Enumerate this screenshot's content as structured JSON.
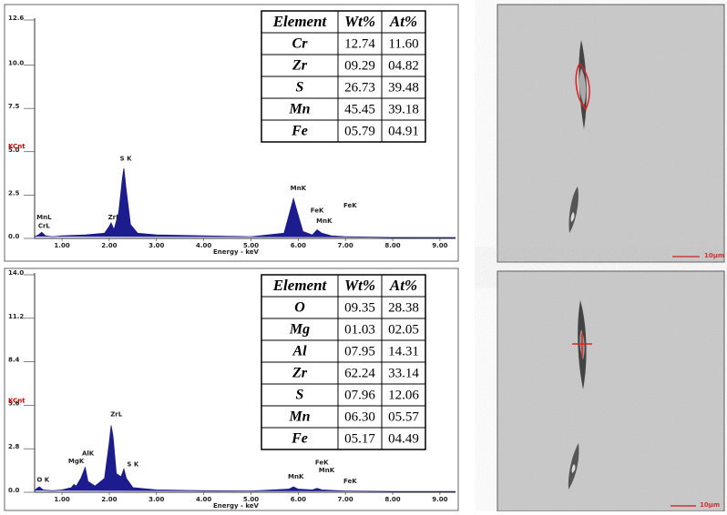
{
  "chart_data": [
    {
      "type": "area",
      "x_label": "Energy - keV",
      "y_label": "KCnt",
      "color": "#1c1c8e",
      "x": [
        0.42,
        0.5,
        0.57,
        0.65,
        0.8,
        1.0,
        1.5,
        1.9,
        2.0,
        2.04,
        2.1,
        2.2,
        2.28,
        2.31,
        2.35,
        2.45,
        2.6,
        3.0,
        4.0,
        5.0,
        5.7,
        5.85,
        5.9,
        5.95,
        6.1,
        6.3,
        6.4,
        6.5,
        6.7,
        7.0,
        8.0,
        9.0,
        9.33
      ],
      "values": [
        0.1,
        0.2,
        0.35,
        0.15,
        0.1,
        0.15,
        0.2,
        0.3,
        0.7,
        0.9,
        0.5,
        1.5,
        3.5,
        4.05,
        3.0,
        0.8,
        0.3,
        0.2,
        0.15,
        0.1,
        0.3,
        1.8,
        2.3,
        1.8,
        0.4,
        0.2,
        0.5,
        0.3,
        0.15,
        0.1,
        0.05,
        0.05,
        0.05
      ],
      "xlim": [
        0.42,
        9.33
      ],
      "ylim": [
        0,
        12.6
      ],
      "xticks": [
        {
          "value": 1,
          "label": "1.00"
        },
        {
          "value": 2,
          "label": "2.00"
        },
        {
          "value": 3,
          "label": "3.00"
        },
        {
          "value": 4,
          "label": "4.00"
        },
        {
          "value": 5,
          "label": "5.00"
        },
        {
          "value": 6,
          "label": "6.00"
        },
        {
          "value": 7,
          "label": "7.00"
        },
        {
          "value": 8,
          "label": "8.00"
        },
        {
          "value": 9,
          "label": "9.00"
        }
      ],
      "yticks": [
        {
          "value": 0,
          "label": "0.0"
        },
        2.5,
        {
          "value": 5,
          "label": "5.0"
        },
        7.5,
        {
          "value": 10,
          "label": "10.0"
        },
        12.6
      ],
      "annotations": [
        {
          "text": "MnL",
          "x": 0.62,
          "y": 1.2
        },
        {
          "text": "CrL",
          "x": 0.62,
          "y": 0.7
        },
        {
          "text": "ZrL",
          "x": 2.1,
          "y": 1.2
        },
        {
          "text": "S K",
          "x": 2.35,
          "y": 4.6
        },
        {
          "text": "MnK",
          "x": 6.0,
          "y": 2.9
        },
        {
          "text": "FeK",
          "x": 6.4,
          "y": 1.6
        },
        {
          "text": "MnK",
          "x": 6.55,
          "y": 1.0
        },
        {
          "text": "FeK",
          "x": 7.1,
          "y": 1.9
        }
      ]
    },
    {
      "type": "area",
      "x_label": "Energy - keV",
      "y_label": "KCnt",
      "color": "#1c1c8e",
      "x": [
        0.42,
        0.47,
        0.52,
        0.6,
        0.8,
        1.0,
        1.2,
        1.25,
        1.3,
        1.4,
        1.49,
        1.55,
        1.7,
        1.9,
        2.0,
        2.04,
        2.08,
        2.15,
        2.25,
        2.31,
        2.36,
        2.5,
        3.0,
        4.0,
        5.0,
        5.8,
        5.9,
        6.0,
        6.3,
        6.4,
        6.5,
        7.0,
        8.0,
        9.0,
        9.33
      ],
      "values": [
        0.1,
        0.25,
        0.35,
        0.15,
        0.1,
        0.15,
        0.3,
        0.5,
        0.4,
        0.9,
        1.6,
        0.7,
        0.4,
        0.9,
        3.2,
        4.3,
        3.6,
        1.2,
        1.0,
        1.5,
        0.9,
        0.3,
        0.15,
        0.1,
        0.08,
        0.2,
        0.35,
        0.2,
        0.15,
        0.25,
        0.15,
        0.08,
        0.05,
        0.05,
        0.05
      ],
      "xlim": [
        0.42,
        9.33
      ],
      "ylim": [
        0,
        14
      ],
      "xticks": [
        {
          "value": 1,
          "label": "1.00"
        },
        {
          "value": 2,
          "label": "2.00"
        },
        {
          "value": 3,
          "label": "3.00"
        },
        {
          "value": 4,
          "label": "4.00"
        },
        {
          "value": 5,
          "label": "5.00"
        },
        {
          "value": 6,
          "label": "6.00"
        },
        {
          "value": 7,
          "label": "7.00"
        },
        {
          "value": 8,
          "label": "8.00"
        },
        {
          "value": 9,
          "label": "9.00"
        }
      ],
      "yticks": [
        {
          "value": 0,
          "label": "0.0"
        },
        2.8,
        5.6,
        8.4,
        11.2,
        {
          "value": 14,
          "label": "14.0"
        }
      ],
      "annotations": [
        {
          "text": "O K",
          "x": 0.6,
          "y": 0.8
        },
        {
          "text": "AlK",
          "x": 1.55,
          "y": 2.5
        },
        {
          "text": "MgK",
          "x": 1.3,
          "y": 2.0
        },
        {
          "text": "ZrL",
          "x": 2.15,
          "y": 5.0
        },
        {
          "text": "S K",
          "x": 2.5,
          "y": 1.8
        },
        {
          "text": "MnK",
          "x": 5.95,
          "y": 1.0
        },
        {
          "text": "FeK",
          "x": 6.5,
          "y": 1.9
        },
        {
          "text": "MnK",
          "x": 6.6,
          "y": 1.4
        },
        {
          "text": "FeK",
          "x": 7.1,
          "y": 0.7
        }
      ]
    }
  ],
  "tables": [
    {
      "header": [
        "Element",
        "Wt%",
        "At%"
      ],
      "rows": [
        [
          "Cr",
          "12.74",
          "11.60"
        ],
        [
          "Zr",
          "09.29",
          "04.82"
        ],
        [
          "S",
          "26.73",
          "39.48"
        ],
        [
          "Mn",
          "45.45",
          "39.18"
        ],
        [
          "Fe",
          "05.79",
          "04.91"
        ]
      ]
    },
    {
      "header": [
        "Element",
        "Wt%",
        "At%"
      ],
      "rows": [
        [
          "O",
          "09.35",
          "28.38"
        ],
        [
          "Mg",
          "01.03",
          "02.05"
        ],
        [
          "Al",
          "07.95",
          "14.31"
        ],
        [
          "Zr",
          "62.24",
          "33.14"
        ],
        [
          "S",
          "07.96",
          "12.06"
        ],
        [
          "Mn",
          "06.30",
          "05.57"
        ],
        [
          "Fe",
          "05.17",
          "04.49"
        ]
      ]
    }
  ],
  "images": [
    {
      "scale_bar": "10µm"
    },
    {
      "scale_bar": "10µm"
    }
  ]
}
